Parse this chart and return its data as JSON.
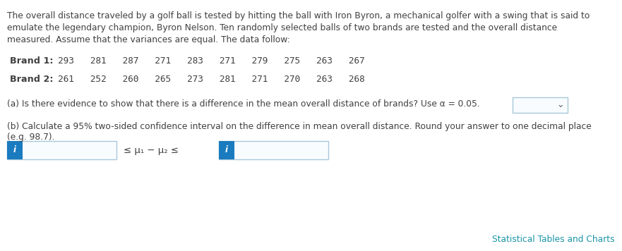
{
  "paragraph_line1": "The overall distance traveled by a golf ball is tested by hitting the ball with Iron Byron, a mechanical golfer with a swing that is said to",
  "paragraph_line2": "emulate the legendary champion, Byron Nelson. Ten randomly selected balls of two brands are tested and the overall distance",
  "paragraph_line3": "measured. Assume that the variances are equal. The data follow:",
  "brand1_label": "Brand 1:",
  "brand1_values": "293   281   287   271   283   271   279   275   263   267",
  "brand2_label": "Brand 2:",
  "brand2_values": "261   252   260   265   273   281   271   270   263   268",
  "part_a_text": "(a) Is there evidence to show that there is a difference in the mean overall distance of brands? Use α = 0.05.",
  "part_b_line1": "(b) Calculate a 95% two-sided confidence interval on the difference in mean overall distance. Round your answer to one decimal place",
  "part_b_line2": "(e.g. 98.7).",
  "mu_expr": "≤ μ₁ − μ₂ ≤",
  "i_label": "i",
  "footer_text": "Statistical Tables and Charts",
  "footer_color": "#1a94a8",
  "bg_color": "#ffffff",
  "text_color": "#404040",
  "box_border_color": "#a8c8d8",
  "blue_tab_color": "#1a7bbf",
  "input_bg_color": "#f8fcff",
  "dropdown_arrow": "⌄",
  "font_size_main": 8.8,
  "font_size_brand": 9.2
}
